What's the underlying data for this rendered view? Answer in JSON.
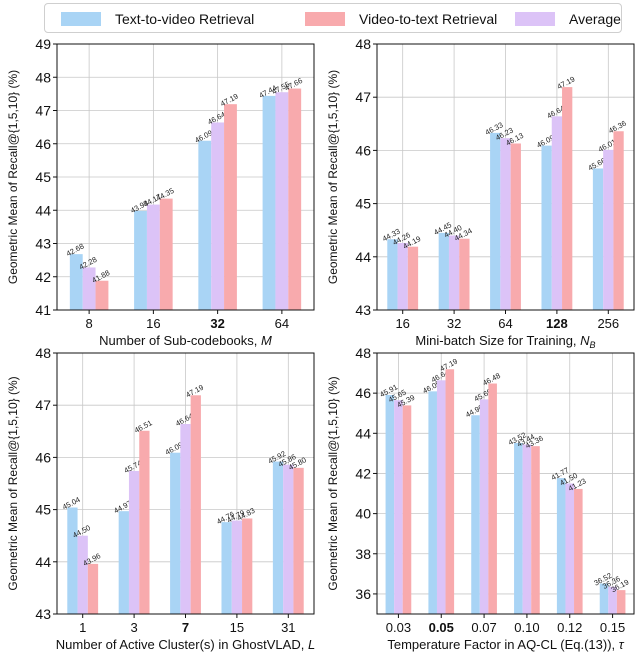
{
  "legend": [
    {
      "label": "Text-to-video Retrieval",
      "color": "#a9d4f5"
    },
    {
      "label": "Video-to-text Retrieval",
      "color": "#f8aaad"
    },
    {
      "label": "Average",
      "color": "#dcc3f7"
    }
  ],
  "chart_data": [
    {
      "type": "bar",
      "categories": [
        "8",
        "16",
        "32",
        "64"
      ],
      "bold_category": "32",
      "series": [
        {
          "name": "Text-to-video Retrieval",
          "values": [
            42.68,
            43.98,
            46.09,
            47.44
          ],
          "labels": [
            "42.68",
            "43.98",
            "46.09",
            "47.44"
          ]
        },
        {
          "name": "Average",
          "values": [
            42.28,
            44.17,
            46.64,
            47.55
          ],
          "labels": [
            "42.28",
            "44.17",
            "46.64",
            "47.55"
          ]
        },
        {
          "name": "Video-to-text Retrieval",
          "values": [
            41.88,
            44.35,
            47.19,
            47.66
          ],
          "labels": [
            "41.88",
            "44.35",
            "47.19",
            "47.66"
          ]
        }
      ],
      "ylim": [
        41,
        49
      ],
      "yticks": [
        "41",
        "42",
        "43",
        "44",
        "45",
        "46",
        "47",
        "48",
        "49"
      ],
      "xlabel": "Number of Sub-codebooks, M",
      "ylabel": "Geometric Mean of Recall@{1,5,10} (%)",
      "grid": true
    },
    {
      "type": "bar",
      "categories": [
        "16",
        "32",
        "64",
        "128",
        "256"
      ],
      "bold_category": "128",
      "series": [
        {
          "name": "Text-to-video Retrieval",
          "values": [
            44.33,
            44.45,
            46.33,
            46.09,
            45.66
          ],
          "labels": [
            "44.33",
            "44.45",
            "46.33",
            "46.09",
            "45.66"
          ]
        },
        {
          "name": "Average",
          "values": [
            44.26,
            44.4,
            46.23,
            46.64,
            46.01
          ],
          "labels": [
            "44.26",
            "44.40",
            "46.23",
            "46.64",
            "46.01"
          ]
        },
        {
          "name": "Video-to-text Retrieval",
          "values": [
            44.19,
            44.34,
            46.13,
            47.19,
            46.36
          ],
          "labels": [
            "44.19",
            "44.34",
            "46.13",
            "47.19",
            "46.36"
          ]
        }
      ],
      "ylim": [
        43,
        48
      ],
      "yticks": [
        "43",
        "44",
        "45",
        "46",
        "47",
        "48"
      ],
      "xlabel": "Mini-batch Size for Training, N_B",
      "ylabel": "Geometric Mean of Recall@{1,5,10} (%)",
      "grid": true
    },
    {
      "type": "bar",
      "categories": [
        "1",
        "3",
        "7",
        "15",
        "31"
      ],
      "bold_category": "7",
      "series": [
        {
          "name": "Text-to-video Retrieval",
          "values": [
            45.04,
            44.97,
            46.09,
            44.76,
            45.92
          ],
          "labels": [
            "45.04",
            "44.97",
            "46.09",
            "44.76",
            "45.92"
          ]
        },
        {
          "name": "Average",
          "values": [
            44.5,
            45.74,
            46.64,
            44.79,
            45.86
          ],
          "labels": [
            "44.50",
            "45.74",
            "46.64",
            "44.79",
            "45.86"
          ]
        },
        {
          "name": "Video-to-text Retrieval",
          "values": [
            43.96,
            46.51,
            47.19,
            44.83,
            45.8
          ],
          "labels": [
            "43.96",
            "46.51",
            "47.19",
            "44.83",
            "45.80"
          ]
        }
      ],
      "ylim": [
        43,
        48
      ],
      "yticks": [
        "43",
        "44",
        "45",
        "46",
        "47",
        "48"
      ],
      "xlabel": "Number of Active Cluster(s) in GhostVLAD, L",
      "ylabel": "Geometric Mean of Recall@{1,5,10} (%)",
      "grid": true
    },
    {
      "type": "bar",
      "categories": [
        "0.03",
        "0.05",
        "0.07",
        "0.10",
        "0.12",
        "0.15"
      ],
      "bold_category": "0.05",
      "series": [
        {
          "name": "Text-to-video Retrieval",
          "values": [
            45.91,
            46.09,
            44.9,
            43.52,
            41.77,
            36.52
          ],
          "labels": [
            "45.91",
            "46.09",
            "44.90",
            "43.52",
            "41.77",
            "36.52"
          ]
        },
        {
          "name": "Average",
          "values": [
            45.65,
            46.64,
            45.69,
            43.44,
            41.5,
            36.36
          ],
          "labels": [
            "45.65",
            "46.64",
            "45.69",
            "43.44",
            "41.50",
            "36.36"
          ]
        },
        {
          "name": "Video-to-text Retrieval",
          "values": [
            45.39,
            47.19,
            46.48,
            43.36,
            41.23,
            36.19
          ],
          "labels": [
            "45.39",
            "47.19",
            "46.48",
            "43.36",
            "41.23",
            "36.19"
          ]
        }
      ],
      "ylim": [
        35,
        48
      ],
      "yticks": [
        "36",
        "38",
        "40",
        "42",
        "44",
        "46",
        "48"
      ],
      "xlabel": "Temperature Factor in AQ-CL (Eq.(13)), τ",
      "ylabel": "Geometric Mean of Recall@{1,5,10} (%)",
      "grid": true
    }
  ]
}
